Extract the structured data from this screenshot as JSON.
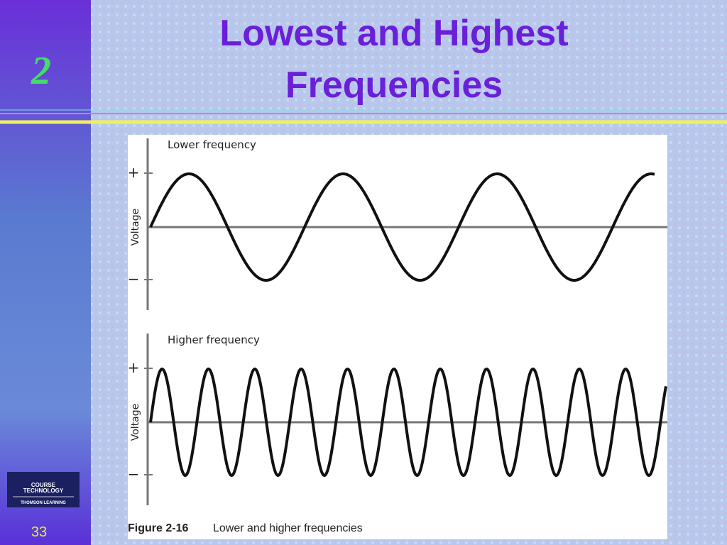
{
  "slide": {
    "number": "2",
    "title": "Lowest and Highest Frequencies",
    "page": "33"
  },
  "logo": {
    "line1": "COURSE",
    "line2": "TECHNOLOGY",
    "line3": "THOMSON LEARNING"
  },
  "figure": {
    "panels": [
      {
        "label": "Lower frequency",
        "axis_label": "Voltage",
        "plus": "+",
        "minus": "−"
      },
      {
        "label": "Higher frequency",
        "axis_label": "Voltage",
        "plus": "+",
        "minus": "−"
      }
    ],
    "caption": {
      "number": "Figure 2-16",
      "text": "Lower and higher frequencies"
    }
  }
}
